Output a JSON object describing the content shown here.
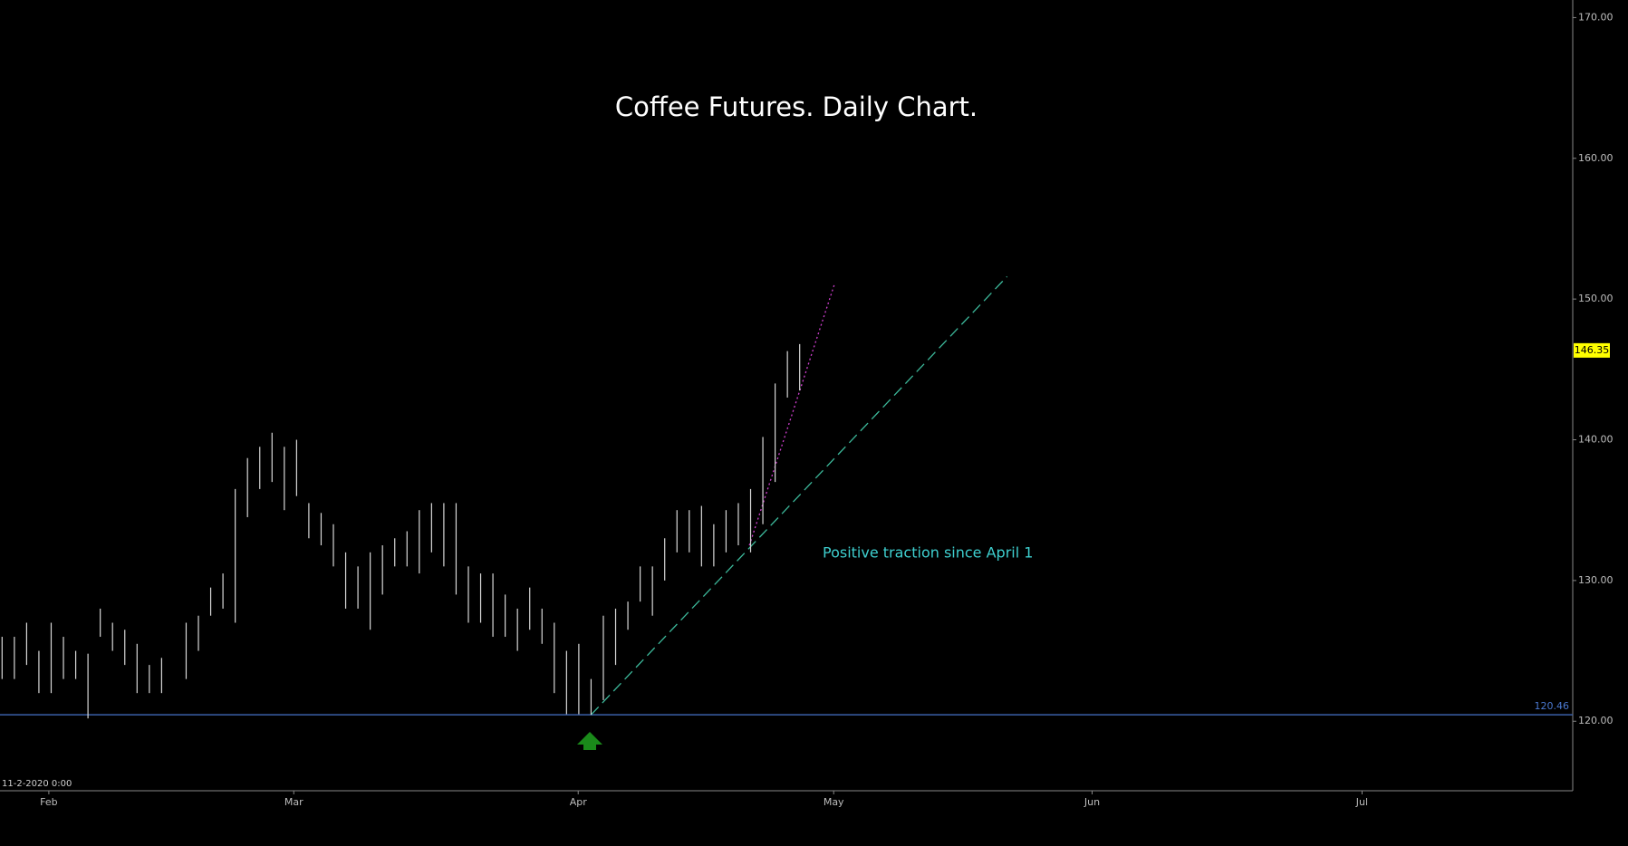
{
  "chart_data": {
    "type": "ohlc",
    "title": "Coffee Futures.  Daily Chart.",
    "timestamp": "11-2-2020 0:00",
    "x": [
      0,
      1,
      2,
      3,
      4,
      5,
      6,
      7,
      8,
      9,
      10,
      11,
      12,
      13,
      15,
      16,
      17,
      18,
      19,
      20,
      21,
      22,
      23,
      24,
      25,
      26,
      27,
      28,
      29,
      30,
      31,
      32,
      33,
      34,
      35,
      36,
      37,
      38,
      39,
      40,
      41,
      42,
      43,
      44,
      45,
      46,
      47,
      48,
      49,
      50,
      51,
      52,
      53,
      54,
      55,
      56,
      57,
      58,
      59,
      60,
      61,
      62,
      63,
      64,
      65
    ],
    "low": [
      123,
      123,
      124,
      122,
      122,
      123,
      123,
      120.2,
      126,
      125,
      124,
      122,
      122,
      122,
      123,
      125,
      127.5,
      128,
      127,
      134.5,
      136.5,
      137,
      135,
      136,
      133,
      132.5,
      131,
      128,
      128,
      126.5,
      129,
      131,
      131,
      130.5,
      132,
      131,
      129,
      127,
      127,
      126,
      126,
      125,
      126.5,
      125.5,
      122,
      120.5,
      120.5,
      120.46,
      121.5,
      124,
      126.5,
      128.5,
      127.5,
      130,
      132,
      132,
      131,
      131,
      132,
      132.5,
      132,
      134,
      137,
      143,
      143.5
    ],
    "high": [
      126,
      126,
      127,
      125,
      127,
      126,
      125,
      124.8,
      128,
      127,
      126.5,
      125.5,
      124,
      124.5,
      127,
      127.5,
      129.5,
      130.5,
      136.5,
      138.7,
      139.5,
      140.5,
      139.5,
      140,
      135.5,
      134.8,
      134,
      132,
      131,
      132,
      132.5,
      133,
      133.5,
      135,
      135.5,
      135.5,
      135.5,
      131,
      130.5,
      130.5,
      129,
      128,
      129.5,
      128,
      127,
      125,
      125.5,
      123,
      127.5,
      128,
      128.5,
      131,
      131,
      133,
      135,
      135,
      135.3,
      134,
      135,
      135.5,
      136.5,
      140.2,
      144,
      146.3,
      146.8
    ],
    "color": "#d8d8d8",
    "xlim": [
      -0.17,
      128.0
    ],
    "xticks": [
      {
        "value": 3.81,
        "label": "Feb"
      },
      {
        "value": 23.77,
        "label": "Mar"
      },
      {
        "value": 46.95,
        "label": "Apr"
      },
      {
        "value": 67.77,
        "label": "May"
      },
      {
        "value": 88.83,
        "label": "Jun"
      },
      {
        "value": 110.83,
        "label": "Jul"
      }
    ],
    "ylim": [
      115.06,
      171.25
    ],
    "yticks": [
      {
        "value": 120,
        "label": "120.00"
      },
      {
        "value": 130,
        "label": "130.00"
      },
      {
        "value": 140,
        "label": "140.00"
      },
      {
        "value": 150,
        "label": "150.00"
      },
      {
        "value": 160,
        "label": "160.00"
      },
      {
        "value": 170,
        "label": "170.00"
      }
    ],
    "support": 120.46,
    "support_color": "#3a5fa8",
    "last": 146.35,
    "trendlines": [
      {
        "x": [
          48,
          81.9
        ],
        "y": [
          120.46,
          151.6
        ],
        "color": "#3cb89a",
        "style": "dashed"
      },
      {
        "x": [
          60.9,
          67.85
        ],
        "y": [
          132.5,
          151.1
        ],
        "color": "#d040d0",
        "style": "dotted"
      }
    ],
    "annotation": "Positive traction since April 1"
  }
}
